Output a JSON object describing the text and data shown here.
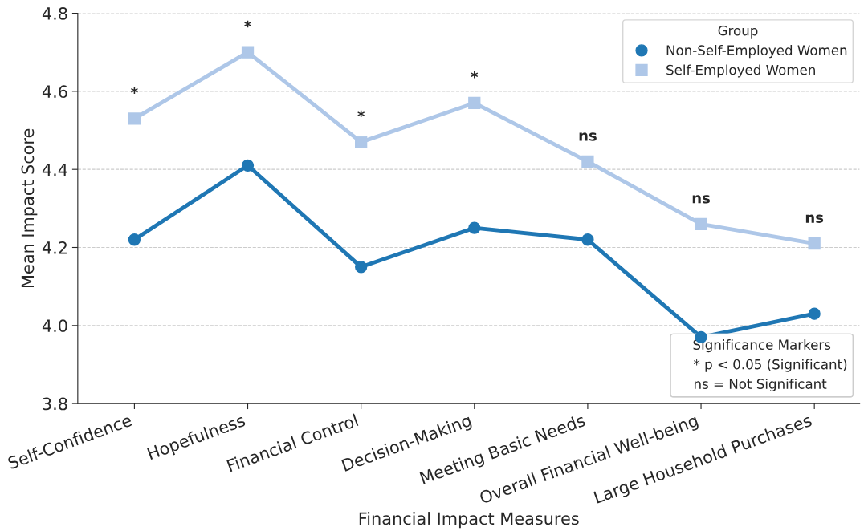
{
  "chart_data": {
    "type": "line",
    "xlabel": "Financial Impact Measures",
    "ylabel": "Mean Impact Score",
    "legend_title": "Group",
    "categories": [
      "Self-Confidence",
      "Hopefulness",
      "Financial Control",
      "Decision-Making",
      "Meeting Basic Needs",
      "Overall Financial Well-being",
      "Large Household Purchases"
    ],
    "series": [
      {
        "name": "Non-Self-Employed Women",
        "color": "#1f77b4",
        "marker": "circle",
        "values": [
          4.22,
          4.41,
          4.15,
          4.25,
          4.22,
          3.97,
          4.03
        ]
      },
      {
        "name": "Self-Employed Women",
        "color": "#aec7e8",
        "marker": "square",
        "values": [
          4.53,
          4.7,
          4.47,
          4.57,
          4.42,
          4.26,
          4.21
        ]
      }
    ],
    "ylim": [
      3.8,
      4.8
    ],
    "yticks": [
      3.8,
      {
        "value": 4.0,
        "label": "4.0"
      },
      4.2,
      4.4,
      4.6,
      4.8
    ],
    "grid": "y",
    "legend": "top right",
    "line_style": "solid",
    "annotations": [
      "*",
      "*",
      "*",
      "*",
      "ns",
      "ns",
      "ns",
      "Significance Markers",
      "* p < 0.05 (Significant)",
      "ns = Not Significant"
    ]
  }
}
